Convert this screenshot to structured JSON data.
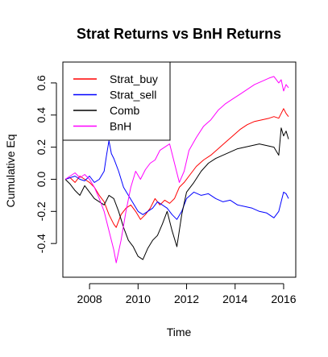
{
  "chart_data": {
    "type": "line",
    "title": "Strat Returns vs BnH Returns",
    "xlabel": "Time",
    "ylabel": "Cumulative Eq",
    "xlim": [
      2006.9,
      2016.5
    ],
    "ylim": [
      -0.61,
      0.73
    ],
    "x_ticks": [
      2008,
      2010,
      2012,
      2014,
      2016
    ],
    "x_tick_labels": [
      "2008",
      "2010",
      "2012",
      "2014",
      "2016"
    ],
    "y_ticks": [
      -0.4,
      -0.2,
      0.0,
      0.2,
      0.4,
      0.6
    ],
    "y_tick_labels": [
      "-0.4",
      "-0.2",
      "0.0",
      "0.2",
      "0.4",
      "0.6"
    ],
    "legend_position": "top-left",
    "grid": false,
    "series": [
      {
        "name": "Strat_buy",
        "color": "#ff0000",
        "x": [
          2007.0,
          2007.2,
          2007.4,
          2007.6,
          2007.8,
          2008.0,
          2008.2,
          2008.4,
          2008.6,
          2008.8,
          2009.0,
          2009.1,
          2009.3,
          2009.5,
          2009.7,
          2009.9,
          2010.1,
          2010.3,
          2010.5,
          2010.7,
          2010.9,
          2011.1,
          2011.3,
          2011.5,
          2011.7,
          2011.9,
          2012.1,
          2012.4,
          2012.7,
          2013.0,
          2013.3,
          2013.6,
          2013.9,
          2014.2,
          2014.5,
          2014.8,
          2015.1,
          2015.4,
          2015.6,
          2015.8,
          2015.9,
          2016.0,
          2016.1,
          2016.2
        ],
        "values": [
          0.0,
          0.01,
          -0.02,
          0.02,
          0.0,
          -0.02,
          -0.05,
          -0.1,
          -0.14,
          -0.22,
          -0.28,
          -0.3,
          -0.22,
          -0.18,
          -0.16,
          -0.2,
          -0.25,
          -0.22,
          -0.18,
          -0.12,
          -0.16,
          -0.13,
          -0.15,
          -0.12,
          -0.05,
          -0.02,
          0.02,
          0.08,
          0.12,
          0.15,
          0.19,
          0.23,
          0.27,
          0.31,
          0.34,
          0.36,
          0.37,
          0.38,
          0.39,
          0.38,
          0.41,
          0.44,
          0.41,
          0.39
        ]
      },
      {
        "name": "Strat_sell",
        "color": "#0000ff",
        "x": [
          2007.0,
          2007.2,
          2007.4,
          2007.6,
          2007.8,
          2008.0,
          2008.2,
          2008.4,
          2008.6,
          2008.7,
          2008.8,
          2008.9,
          2009.0,
          2009.2,
          2009.4,
          2009.6,
          2009.8,
          2010.0,
          2010.2,
          2010.4,
          2010.6,
          2010.8,
          2011.0,
          2011.2,
          2011.4,
          2011.6,
          2011.8,
          2012.0,
          2012.3,
          2012.6,
          2012.9,
          2013.2,
          2013.5,
          2013.8,
          2014.1,
          2014.4,
          2014.7,
          2015.0,
          2015.3,
          2015.6,
          2015.8,
          2016.0,
          2016.1,
          2016.2
        ],
        "values": [
          0.0,
          0.01,
          0.02,
          0.0,
          -0.01,
          0.02,
          -0.02,
          0.0,
          0.05,
          0.15,
          0.24,
          0.16,
          0.13,
          0.05,
          -0.05,
          -0.1,
          -0.15,
          -0.2,
          -0.22,
          -0.2,
          -0.18,
          -0.14,
          -0.16,
          -0.18,
          -0.22,
          -0.25,
          -0.2,
          -0.12,
          -0.08,
          -0.1,
          -0.09,
          -0.12,
          -0.14,
          -0.13,
          -0.16,
          -0.17,
          -0.18,
          -0.2,
          -0.21,
          -0.24,
          -0.2,
          -0.08,
          -0.09,
          -0.12
        ]
      },
      {
        "name": "Comb",
        "color": "#000000",
        "x": [
          2007.0,
          2007.2,
          2007.4,
          2007.6,
          2007.8,
          2008.0,
          2008.2,
          2008.4,
          2008.6,
          2008.8,
          2009.0,
          2009.2,
          2009.4,
          2009.6,
          2009.8,
          2010.0,
          2010.2,
          2010.4,
          2010.6,
          2010.8,
          2011.0,
          2011.2,
          2011.4,
          2011.6,
          2011.8,
          2012.0,
          2012.3,
          2012.6,
          2012.9,
          2013.2,
          2013.5,
          2013.8,
          2014.1,
          2014.4,
          2014.7,
          2015.0,
          2015.3,
          2015.6,
          2015.8,
          2015.9,
          2016.0,
          2016.1,
          2016.2
        ],
        "values": [
          0.0,
          -0.03,
          -0.07,
          -0.1,
          -0.04,
          -0.08,
          -0.12,
          -0.14,
          -0.16,
          -0.1,
          -0.12,
          -0.2,
          -0.3,
          -0.38,
          -0.42,
          -0.48,
          -0.5,
          -0.43,
          -0.38,
          -0.35,
          -0.28,
          -0.2,
          -0.32,
          -0.42,
          -0.22,
          -0.08,
          -0.02,
          0.05,
          0.1,
          0.13,
          0.15,
          0.17,
          0.19,
          0.2,
          0.21,
          0.22,
          0.21,
          0.2,
          0.15,
          0.32,
          0.27,
          0.3,
          0.25
        ]
      },
      {
        "name": "BnH",
        "color": "#ff00ff",
        "x": [
          2007.0,
          2007.2,
          2007.4,
          2007.6,
          2007.8,
          2008.0,
          2008.2,
          2008.4,
          2008.6,
          2008.8,
          2009.0,
          2009.1,
          2009.3,
          2009.5,
          2009.7,
          2009.9,
          2010.1,
          2010.3,
          2010.5,
          2010.7,
          2010.9,
          2011.1,
          2011.3,
          2011.5,
          2011.7,
          2011.9,
          2012.1,
          2012.4,
          2012.7,
          2013.0,
          2013.3,
          2013.6,
          2013.9,
          2014.2,
          2014.5,
          2014.8,
          2015.1,
          2015.4,
          2015.6,
          2015.8,
          2015.9,
          2016.0,
          2016.1,
          2016.2
        ],
        "values": [
          0.0,
          0.02,
          0.04,
          0.01,
          0.03,
          0.0,
          -0.05,
          -0.12,
          -0.2,
          -0.32,
          -0.44,
          -0.52,
          -0.38,
          -0.2,
          -0.05,
          0.05,
          0.0,
          0.06,
          0.1,
          0.12,
          0.18,
          0.2,
          0.22,
          0.1,
          -0.02,
          0.05,
          0.18,
          0.26,
          0.33,
          0.37,
          0.43,
          0.47,
          0.5,
          0.53,
          0.56,
          0.59,
          0.61,
          0.63,
          0.64,
          0.6,
          0.62,
          0.55,
          0.59,
          0.57
        ]
      }
    ]
  }
}
